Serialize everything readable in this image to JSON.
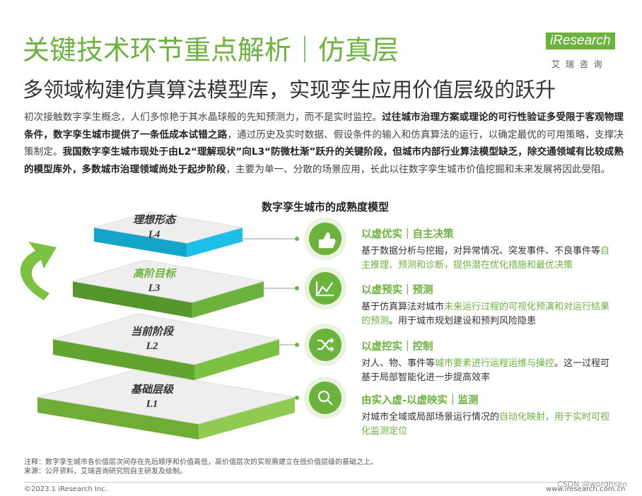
{
  "header": {
    "title": "关键技术环节重点解析｜仿真层",
    "subtitle": "多领域构建仿真算法模型库，实现孪生应用价值层级的跃升"
  },
  "logo": {
    "brand": "iResearch",
    "chinese": "艾 瑞 咨 询"
  },
  "intro": [
    {
      "text": "初次接触数字孪生概念，人们多惊艳于其水晶球般的先知预测力，而不是实时监控。",
      "bold": false
    },
    {
      "text": "过往城市治理方案或理论的可行性验证多受限于客观物理条件，数字孪生城市提供了一条低成本试错之路",
      "bold": true
    },
    {
      "text": "，通过历史及实时数据、假设条件的输入和仿真算法的运行，以确定最优的可用策略，支撑决策制定。",
      "bold": false
    },
    {
      "text": "我国数字孪生城市现处于由L2“理解现状”向L3“防微杜渐”跃升的关键阶段，但城市内部行业算法模型缺乏，除交通领域有比较成熟的模型库外，多数城市治理领域尚处于起步阶段",
      "bold": true
    },
    {
      "text": "，主要为单一、分散的场景应用，长此以往数字孪生城市价值挖掘和未来发展将因此受阻。",
      "bold": false
    }
  ],
  "diagram": {
    "title": "数字孪生城市的成熟度模型",
    "levels": [
      {
        "name": "理想形态",
        "level": "L4"
      },
      {
        "name": "高阶目标",
        "level": "L3"
      },
      {
        "name": "当前阶段",
        "level": "L2"
      },
      {
        "name": "基础层级",
        "level": "L1"
      }
    ],
    "items": [
      {
        "heading": "以虚优实｜自主决策",
        "body": [
          {
            "text": "基于数据分析与挖掘，对异常情况、突发事件、不良事件等",
            "highlight": false
          },
          {
            "text": "自主推理、预测和诊断，提供潜在优化措施和最优决策",
            "highlight": true
          }
        ]
      },
      {
        "heading": "以虚预实｜预测",
        "body": [
          {
            "text": "基于仿真算法对城市",
            "highlight": false
          },
          {
            "text": "未来运行过程的可视化预演和对运行结果的预测",
            "highlight": true
          },
          {
            "text": "。用于城市规划建设和预判风险隐患",
            "highlight": false
          }
        ]
      },
      {
        "heading": "以虚控实｜控制",
        "body": [
          {
            "text": "对人、物、事件等",
            "highlight": false
          },
          {
            "text": "城市要素进行运程运维与操控",
            "highlight": true
          },
          {
            "text": "。这一过程可基于局部智能化进一步提高效率",
            "highlight": false
          }
        ]
      },
      {
        "heading": "由实入虚-以虚映实｜监测",
        "body": [
          {
            "text": "对城市全域或局部场景运行情况的",
            "highlight": false
          },
          {
            "text": "自动化映射，用于实时可视化监测定位",
            "highlight": true
          }
        ]
      }
    ]
  },
  "notes": [
    "注释：数字孪生城市各价值层次间存在先后顺序和价值高低，高价值层次的实现需建立在低价值层级的基础之上。",
    "来源：公开资料，艾瑞咨询研究院自主研发及绘制。"
  ],
  "footer": {
    "copyright": "©2023.1 iResearch Inc.",
    "website": "www.iresearch.com.cn"
  },
  "watermark": "CSDN @wordhsen"
}
